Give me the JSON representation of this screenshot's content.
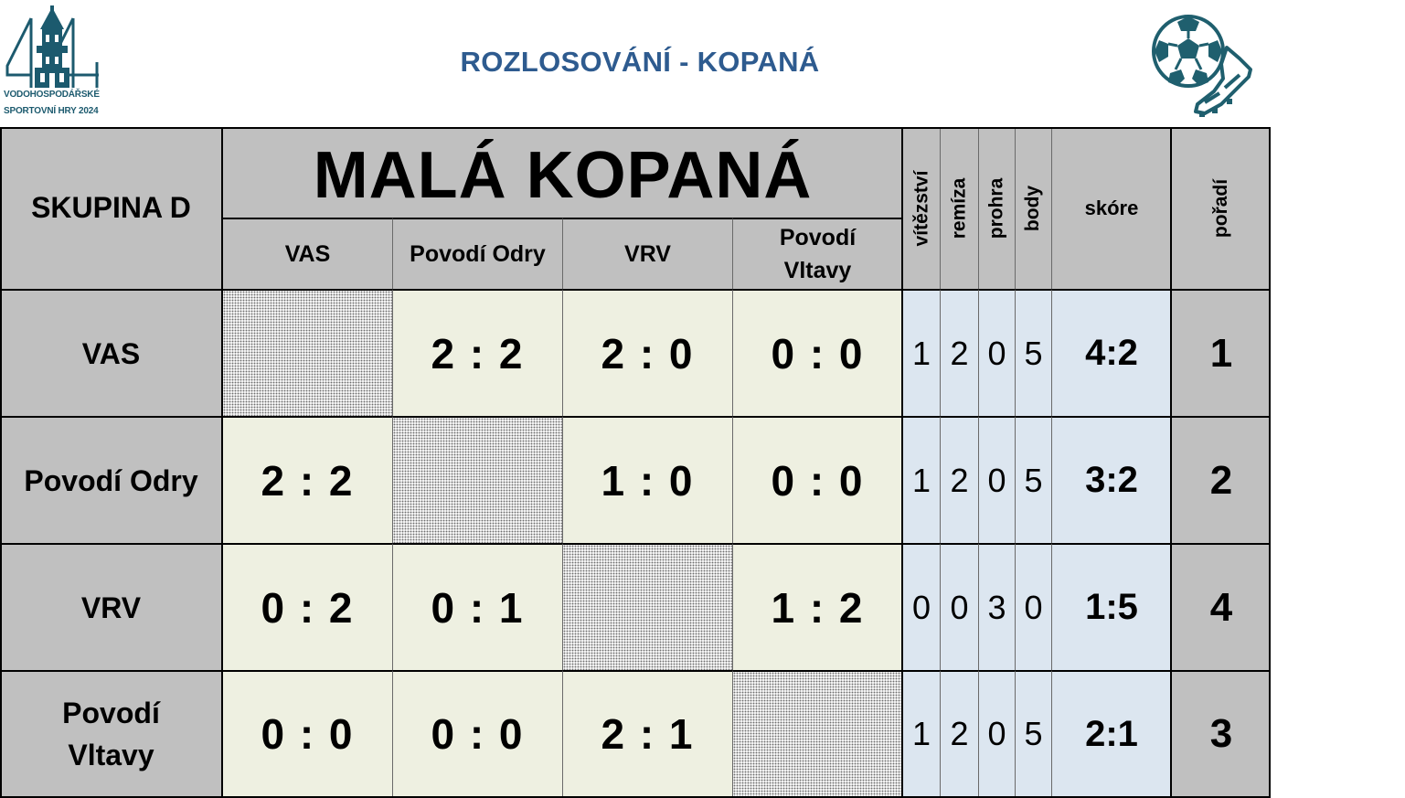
{
  "header": {
    "title": "ROZLOSOVÁNÍ - KOPANÁ",
    "logo": {
      "number": "44",
      "line1": "VODOHOSPODÁŘSKÉ",
      "line2": "SPORTOVNÍ HRY 2024",
      "icon": "tower-logo-icon"
    },
    "decor_icon": "football-boot-icon",
    "accent_color": "#2e5b8f",
    "logo_color": "#1c5a6e"
  },
  "table": {
    "group_label": "SKUPINA D",
    "title": "MALÁ KOPANÁ",
    "teams": [
      "VAS",
      "Povodí Odry",
      "VRV",
      "Povodí Vltavy"
    ],
    "team_lines": [
      [
        "VAS"
      ],
      [
        "Povodí Odry"
      ],
      [
        "VRV"
      ],
      [
        "Povodí",
        "Vltavy"
      ]
    ],
    "column_lines": [
      [
        "VAS"
      ],
      [
        "Povodí Odry"
      ],
      [
        "VRV"
      ],
      [
        "Povodí",
        "Vltavy"
      ]
    ],
    "stat_headers": {
      "wins": "vítězství",
      "draws": "remíza",
      "losses": "prohra",
      "points": "body",
      "score": "skóre",
      "rank": "pořadí"
    },
    "results": [
      [
        "",
        "2 : 2",
        "2 : 0",
        "0 : 0"
      ],
      [
        "2 : 2",
        "",
        "1 : 0",
        "0 : 0"
      ],
      [
        "0 : 2",
        "0 : 1",
        "",
        "1 : 2"
      ],
      [
        "0 : 0",
        "0 : 0",
        "2 : 1",
        ""
      ]
    ],
    "stats": [
      {
        "wins": "1",
        "draws": "2",
        "losses": "0",
        "points": "5",
        "score": "4:2",
        "rank": "1"
      },
      {
        "wins": "1",
        "draws": "2",
        "losses": "0",
        "points": "5",
        "score": "3:2",
        "rank": "2"
      },
      {
        "wins": "0",
        "draws": "0",
        "losses": "3",
        "points": "0",
        "score": "1:5",
        "rank": "4"
      },
      {
        "wins": "1",
        "draws": "2",
        "losses": "0",
        "points": "5",
        "score": "2:1",
        "rank": "3"
      }
    ],
    "colors": {
      "header_gray": "#c0c0c0",
      "result_cream": "#eef0e1",
      "stats_blue": "#dce6f0"
    }
  }
}
